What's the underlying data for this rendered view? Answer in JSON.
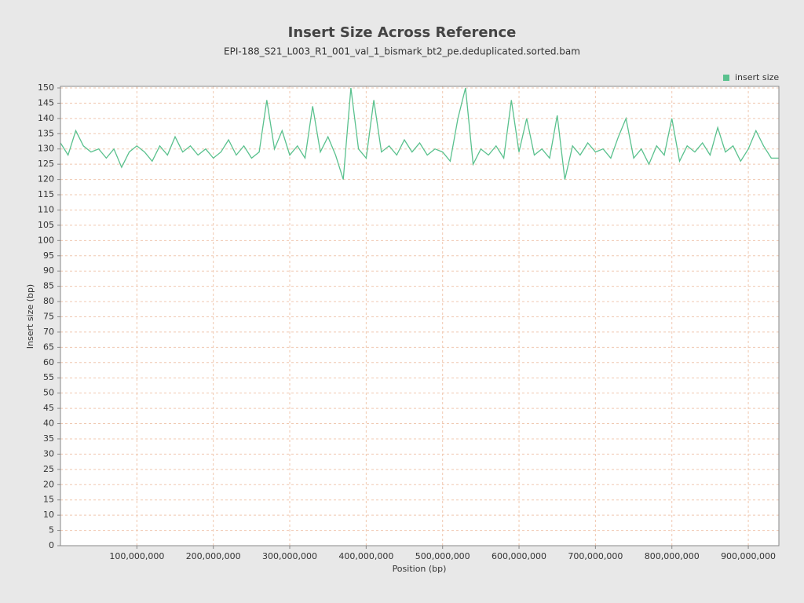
{
  "chart_data": {
    "type": "line",
    "title": "Insert Size Across Reference",
    "subtitle": "EPI-188_S21_L003_R1_001_val_1_bismark_bt2_pe.deduplicated.sorted.bam",
    "x_label": "Position (bp)",
    "y_label": "Insert size (bp)",
    "xlim": [
      0,
      940000000
    ],
    "ylim": [
      0,
      150
    ],
    "xticks": [
      {
        "value": 100000000,
        "label": "100,000,000"
      },
      {
        "value": 200000000,
        "label": "200,000,000"
      },
      {
        "value": 300000000,
        "label": "300,000,000"
      },
      {
        "value": 400000000,
        "label": "400,000,000"
      },
      {
        "value": 500000000,
        "label": "500,000,000"
      },
      {
        "value": 600000000,
        "label": "600,000,000"
      },
      {
        "value": 700000000,
        "label": "700,000,000"
      },
      {
        "value": 800000000,
        "label": "800,000,000"
      },
      {
        "value": 900000000,
        "label": "900,000,000"
      }
    ],
    "yticks": [
      0,
      5,
      10,
      15,
      20,
      25,
      30,
      35,
      40,
      45,
      50,
      55,
      60,
      65,
      70,
      75,
      80,
      85,
      90,
      95,
      100,
      105,
      110,
      115,
      120,
      125,
      130,
      135,
      140,
      145,
      150
    ],
    "grid": true,
    "legend": "top-right",
    "x": [
      0,
      10000000,
      20000000,
      30000000,
      40000000,
      50000000,
      60000000,
      70000000,
      80000000,
      90000000,
      100000000,
      110000000,
      120000000,
      130000000,
      140000000,
      150000000,
      160000000,
      170000000,
      180000000,
      190000000,
      200000000,
      210000000,
      220000000,
      230000000,
      240000000,
      250000000,
      260000000,
      270000000,
      280000000,
      290000000,
      300000000,
      310000000,
      320000000,
      330000000,
      340000000,
      350000000,
      360000000,
      370000000,
      380000000,
      390000000,
      400000000,
      410000000,
      420000000,
      430000000,
      440000000,
      450000000,
      460000000,
      470000000,
      480000000,
      490000000,
      500000000,
      510000000,
      520000000,
      530000000,
      540000000,
      550000000,
      560000000,
      570000000,
      580000000,
      590000000,
      600000000,
      610000000,
      620000000,
      630000000,
      640000000,
      650000000,
      660000000,
      670000000,
      680000000,
      690000000,
      700000000,
      710000000,
      720000000,
      730000000,
      740000000,
      750000000,
      760000000,
      770000000,
      780000000,
      790000000,
      800000000,
      810000000,
      820000000,
      830000000,
      840000000,
      850000000,
      860000000,
      870000000,
      880000000,
      890000000,
      900000000,
      910000000,
      920000000,
      930000000,
      940000000
    ],
    "series": [
      {
        "name": "insert size",
        "color": "#5ac18e",
        "values": [
          132,
          128,
          136,
          131,
          129,
          130,
          127,
          130,
          124,
          129,
          131,
          129,
          126,
          131,
          128,
          134,
          129,
          131,
          128,
          130,
          127,
          129,
          133,
          128,
          131,
          127,
          129,
          146,
          130,
          136,
          128,
          131,
          127,
          144,
          129,
          134,
          128,
          120,
          150,
          130,
          127,
          146,
          129,
          131,
          128,
          133,
          129,
          132,
          128,
          130,
          129,
          126,
          140,
          150,
          125,
          130,
          128,
          131,
          127,
          146,
          129,
          140,
          128,
          130,
          127,
          141,
          120,
          131,
          128,
          132,
          129,
          130,
          127,
          134,
          140,
          127,
          130,
          125,
          131,
          128,
          140,
          126,
          131,
          129,
          132,
          128,
          137,
          129,
          131,
          126,
          130,
          136,
          131,
          127,
          127
        ]
      }
    ]
  }
}
